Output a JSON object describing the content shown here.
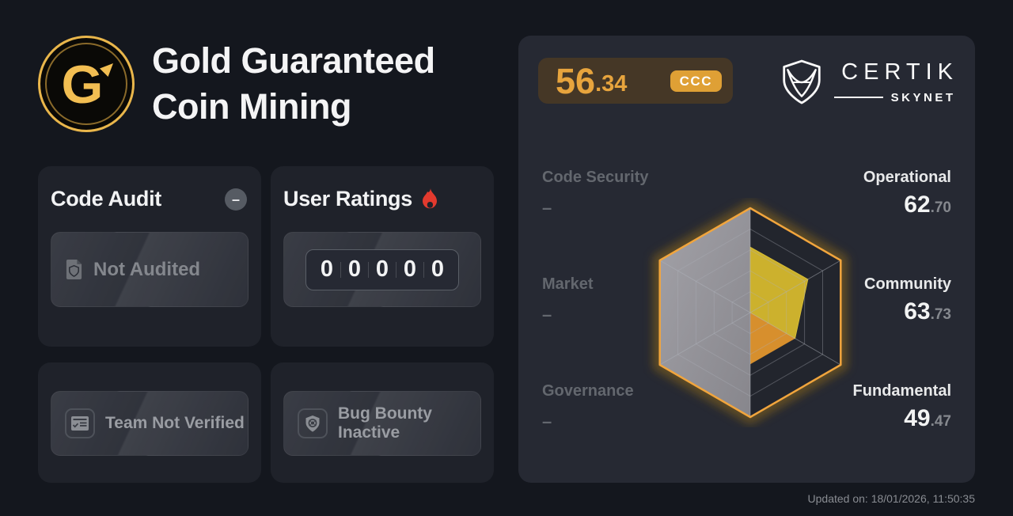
{
  "header": {
    "title_line1": "Gold Guaranteed",
    "title_line2": "Coin Mining",
    "logo_letter": "G"
  },
  "security_score": {
    "value_int": "56",
    "value_frac": ".34",
    "grade": "CCC"
  },
  "brand": {
    "name": "CERTIK",
    "subname": "SKYNET"
  },
  "audit_card": {
    "title": "Code Audit",
    "badge": "–",
    "status": "Not Audited"
  },
  "ratings_card": {
    "title": "User Ratings",
    "digits": [
      "0",
      "0",
      "0",
      "0",
      "0"
    ]
  },
  "team_card": {
    "status": "Team Not Verified"
  },
  "bounty_card": {
    "status": "Bug Bounty Inactive"
  },
  "footer": {
    "updated": "Updated on: 18/01/2026, 11:50:35"
  },
  "chart_data": {
    "type": "radar",
    "title": "CertiK Skynet score radar",
    "axis_range": [
      0,
      100
    ],
    "overall_score": 56.34,
    "grade": "CCC",
    "legend_position": "sides",
    "grid": true,
    "grid_rings": [
      0.2,
      0.4,
      0.6,
      0.8,
      1.0
    ],
    "axes": [
      {
        "label": "Operational",
        "value": 62.7,
        "value_int": "62",
        "value_frac": ".70",
        "position": "top"
      },
      {
        "label": "Community",
        "value": 63.73,
        "value_int": "63",
        "value_frac": ".73",
        "position": "upper-right"
      },
      {
        "label": "Fundamental",
        "value": 49.47,
        "value_int": "49",
        "value_frac": ".47",
        "position": "lower-right"
      },
      {
        "label": "Governance",
        "value": null,
        "display": "–",
        "position": "bottom"
      },
      {
        "label": "Market",
        "value": null,
        "display": "–",
        "position": "lower-left"
      },
      {
        "label": "Code Security",
        "value": null,
        "display": "–",
        "position": "upper-left"
      }
    ],
    "colors": {
      "outline": "#F1A53D",
      "glow": "#6B5320",
      "fill_value": "#CCB12D",
      "fill_reflection": "#D78F2D",
      "fill_nodata_light": "#A2A1A7",
      "fill_nodata_dark": "#87868C",
      "grid": "#AEB2BA",
      "base": "#22252D"
    }
  }
}
